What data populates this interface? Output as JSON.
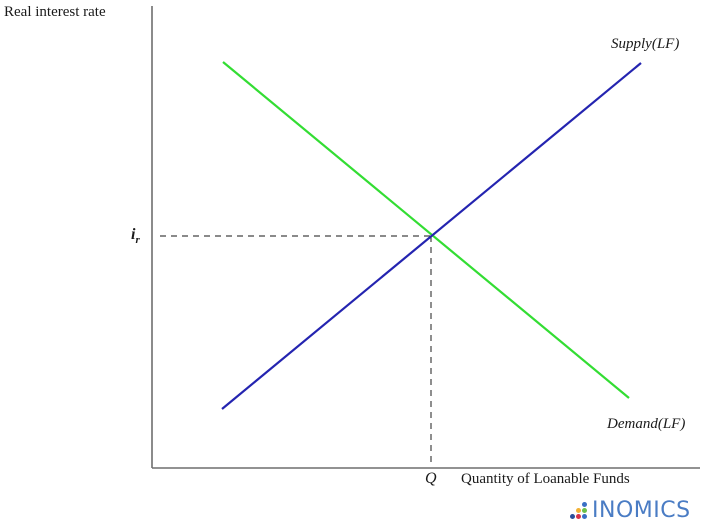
{
  "chart_data": {
    "type": "line",
    "title": "",
    "xlabel": "Quantity of Loanable Funds",
    "ylabel": "Real interest rate",
    "grid": false,
    "series": [
      {
        "name": "Supply(LF)",
        "color": "#2424b0",
        "points": [
          [
            0.13,
            0.13
          ],
          [
            0.9,
            0.88
          ]
        ]
      },
      {
        "name": "Demand(LF)",
        "color": "#33dd33",
        "points": [
          [
            0.13,
            0.88
          ],
          [
            0.88,
            0.15
          ]
        ]
      }
    ],
    "equilibrium": {
      "x_label": "Q",
      "y_label": "i_r",
      "x": 0.51,
      "y": 0.5
    },
    "annotations": [
      "Supply(LF)",
      "Demand(LF)",
      "Q",
      "i_r"
    ]
  },
  "axes": {
    "y_label": "Real interest rate",
    "x_label": "Quantity of Loanable Funds",
    "x_tick": "Q",
    "y_tick_main": "i",
    "y_tick_sub": "r"
  },
  "curves": {
    "supply_label": "Supply(LF)",
    "demand_label": "Demand(LF)",
    "supply_color": "#2424b0",
    "demand_color": "#33dd33"
  },
  "brand": {
    "name": "INOMICS",
    "color": "#4a7cc4",
    "dots": [
      "transparent",
      "transparent",
      "#3a6fc4",
      "transparent",
      "#f2b134",
      "#6cc04a",
      "#2a4f9c",
      "#d8334a",
      "#3a6fc4"
    ]
  }
}
